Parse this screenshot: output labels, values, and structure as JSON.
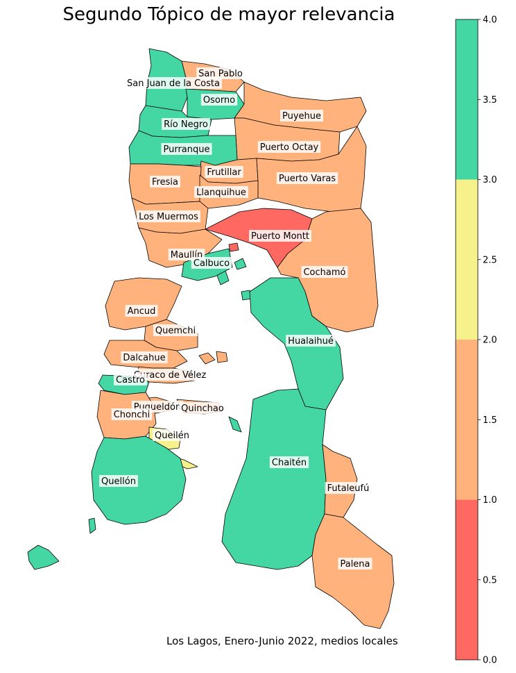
{
  "title": "Segundo Tópico de mayor relevancia",
  "caption": "Los Lagos, Enero-Junio 2022, medios locales",
  "colors": {
    "cat_0": "#ff6961",
    "cat_1": "#ffb27b",
    "cat_2": "#f7f18b",
    "cat_3": "#44d7a3"
  },
  "colorbar": {
    "min": 0.0,
    "max": 4.0,
    "bands": [
      {
        "from": 0,
        "to": 1,
        "color": "#ff6961"
      },
      {
        "from": 1,
        "to": 2,
        "color": "#ffb27b"
      },
      {
        "from": 2,
        "to": 3,
        "color": "#f7f18b"
      },
      {
        "from": 3,
        "to": 4,
        "color": "#44d7a3"
      }
    ],
    "ticks": [
      "0.0",
      "0.5",
      "1.0",
      "1.5",
      "2.0",
      "2.5",
      "3.0",
      "3.5",
      "4.0"
    ]
  },
  "regions": [
    {
      "name": "San Pablo",
      "category": 1
    },
    {
      "name": "San Juan de la Costa",
      "category": 3
    },
    {
      "name": "Osorno",
      "category": 3
    },
    {
      "name": "Puyehue",
      "category": 1
    },
    {
      "name": "Río Negro",
      "category": 3
    },
    {
      "name": "Puerto Octay",
      "category": 1
    },
    {
      "name": "Purranque",
      "category": 3
    },
    {
      "name": "Frutillar",
      "category": 1
    },
    {
      "name": "Fresia",
      "category": 1
    },
    {
      "name": "Puerto Varas",
      "category": 1
    },
    {
      "name": "Llanquihue",
      "category": 1
    },
    {
      "name": "Los Muermos",
      "category": 1
    },
    {
      "name": "Puerto Montt",
      "category": 0
    },
    {
      "name": "Maullín",
      "category": 1
    },
    {
      "name": "Calbuco",
      "category": 3
    },
    {
      "name": "Cochamó",
      "category": 1
    },
    {
      "name": "Ancud",
      "category": 1
    },
    {
      "name": "Quemchi",
      "category": 1
    },
    {
      "name": "Hualaihué",
      "category": 3
    },
    {
      "name": "Dalcahue",
      "category": 1
    },
    {
      "name": "Curaco de Vélez",
      "category": 1
    },
    {
      "name": "Castro",
      "category": 3
    },
    {
      "name": "Puqueldón",
      "category": 1
    },
    {
      "name": "Quinchao",
      "category": 1
    },
    {
      "name": "Chonchi",
      "category": 1
    },
    {
      "name": "Queilén",
      "category": 2
    },
    {
      "name": "Chaitén",
      "category": 3
    },
    {
      "name": "Quellón",
      "category": 3
    },
    {
      "name": "Futaleufú",
      "category": 1
    },
    {
      "name": "Palena",
      "category": 1
    }
  ]
}
